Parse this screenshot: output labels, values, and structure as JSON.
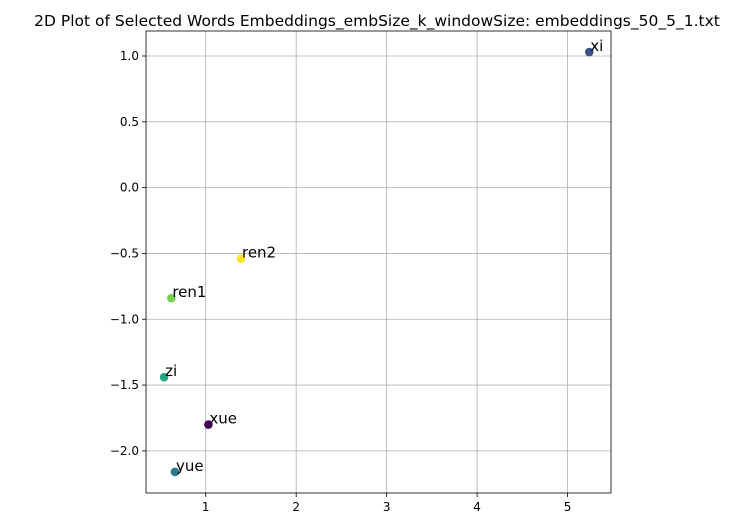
{
  "chart_data": {
    "type": "scatter",
    "title": "2D Plot of Selected Words Embeddings_embSize_k_windowSize: embeddings_50_5_1.txt",
    "xlabel": "",
    "ylabel": "",
    "xlim": [
      0.34,
      5.48
    ],
    "ylim": [
      -2.32,
      1.19
    ],
    "xticks": [
      1,
      2,
      3,
      4,
      5
    ],
    "xtick_labels": [
      "1",
      "2",
      "3",
      "4",
      "5"
    ],
    "yticks": [
      1.0,
      0.5,
      0.0,
      -0.5,
      -1.0,
      -1.5,
      -2.0
    ],
    "ytick_labels": [
      "1.0",
      "0.5",
      "0.0",
      "−0.5",
      "−1.0",
      "−1.5",
      "−2.0"
    ],
    "grid": true,
    "points": [
      {
        "label": "xi",
        "x": 5.24,
        "y": 1.03,
        "color": "#3b518b"
      },
      {
        "label": "ren2",
        "x": 1.39,
        "y": -0.54,
        "color": "#fde725"
      },
      {
        "label": "ren1",
        "x": 0.62,
        "y": -0.84,
        "color": "#7ad151"
      },
      {
        "label": "zi",
        "x": 0.54,
        "y": -1.44,
        "color": "#22a884"
      },
      {
        "label": "xue",
        "x": 1.03,
        "y": -1.8,
        "color": "#440154"
      },
      {
        "label": "yue",
        "x": 0.66,
        "y": -2.16,
        "color": "#2a788e"
      }
    ]
  }
}
